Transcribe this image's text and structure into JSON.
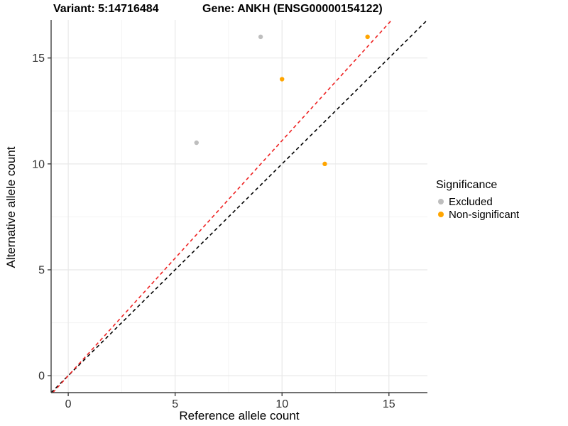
{
  "titles": {
    "variant": "Variant: 5:14716484",
    "gene": "Gene: ANKH (ENSG00000154122)"
  },
  "chart_data": {
    "type": "scatter",
    "xlabel": "Reference allele count",
    "ylabel": "Alternative allele count",
    "xlim": [
      -0.8,
      16.8
    ],
    "ylim": [
      -0.8,
      16.8
    ],
    "x_ticks": [
      0,
      5,
      10,
      15
    ],
    "y_ticks": [
      0,
      5,
      10,
      15
    ],
    "x_minor_ticks": [
      2.5,
      7.5,
      12.5
    ],
    "y_minor_ticks": [
      2.5,
      7.5,
      12.5
    ],
    "grid": true,
    "series": [
      {
        "name": "Excluded",
        "color": "#bebebe",
        "points": [
          [
            9,
            16
          ],
          [
            6,
            11
          ]
        ]
      },
      {
        "name": "Non-significant",
        "color": "#ffa500",
        "points": [
          [
            14,
            16
          ],
          [
            10,
            14
          ],
          [
            12,
            10
          ]
        ]
      }
    ],
    "lines": [
      {
        "name": "identity-line",
        "color": "#000000",
        "style": "dashed",
        "slope": 1.0,
        "intercept": 0
      },
      {
        "name": "expected-ratio-line",
        "color": "#ee2222",
        "style": "dashed",
        "slope": 1.11,
        "intercept": 0
      }
    ],
    "legend": {
      "title": "Significance",
      "entries": [
        "Excluded",
        "Non-significant"
      ],
      "position": "right"
    },
    "style": {
      "major_grid_color": "#e8e8e8",
      "minor_grid_color": "#f3f3f3",
      "axis_line_color": "#404040",
      "tick_color": "#333333",
      "tick_label_color": "#303030",
      "point_radius": 3.2,
      "legend_dot_radius": 4
    }
  }
}
